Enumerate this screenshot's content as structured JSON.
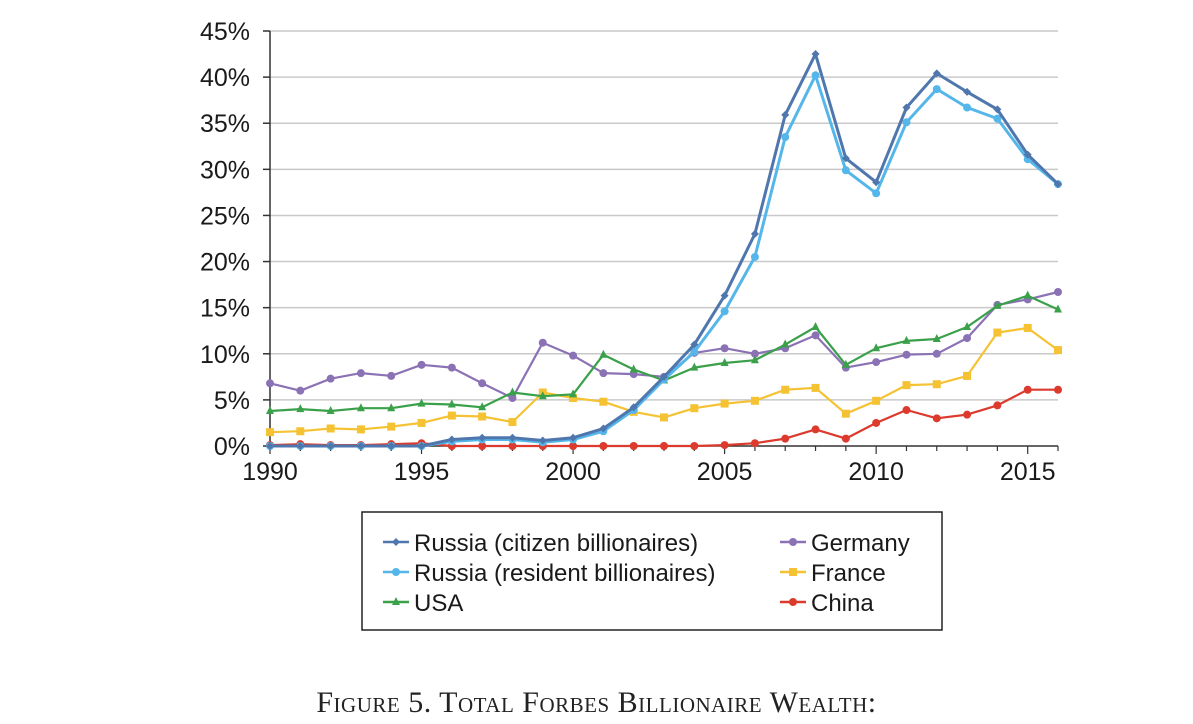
{
  "caption": "Figure 5. Total Forbes Billionaire Wealth:",
  "chart_data": {
    "type": "line",
    "title": "",
    "xlabel": "",
    "ylabel": "",
    "xlim": [
      1990,
      2016
    ],
    "ylim": [
      0,
      45
    ],
    "x_ticks": [
      1990,
      1995,
      2000,
      2005,
      2010,
      2015
    ],
    "y_ticks": [
      0,
      5,
      10,
      15,
      20,
      25,
      30,
      35,
      40,
      45
    ],
    "y_tick_labels": [
      "0%",
      "5%",
      "10%",
      "15%",
      "20%",
      "25%",
      "30%",
      "35%",
      "40%",
      "45%"
    ],
    "grid": "horizontal",
    "legend_position": "bottom",
    "series": [
      {
        "name": "Russia (citizen billionaires)",
        "color": "#4f77ae",
        "marker": "diamond",
        "x": [
          1990,
          1991,
          1992,
          1993,
          1994,
          1995,
          1996,
          1997,
          1998,
          1999,
          2000,
          2001,
          2002,
          2003,
          2004,
          2005,
          2006,
          2007,
          2008,
          2009,
          2010,
          2011,
          2012,
          2013,
          2014,
          2015,
          2016
        ],
        "y": [
          0,
          0,
          0,
          0,
          0,
          0,
          0.7,
          0.9,
          0.9,
          0.6,
          0.9,
          1.9,
          4.2,
          7.5,
          11,
          16.3,
          23,
          35.9,
          42.5,
          31.2,
          28.6,
          36.7,
          40.4,
          38.4,
          36.5,
          31.6,
          28.4
        ]
      },
      {
        "name": "Russia (resident billionaires)",
        "color": "#55b6e9",
        "marker": "circle",
        "x": [
          1990,
          1991,
          1992,
          1993,
          1994,
          1995,
          1996,
          1997,
          1998,
          1999,
          2000,
          2001,
          2002,
          2003,
          2004,
          2005,
          2006,
          2007,
          2008,
          2009,
          2010,
          2011,
          2012,
          2013,
          2014,
          2015,
          2016
        ],
        "y": [
          0,
          0,
          0,
          0,
          0,
          0,
          0.5,
          0.7,
          0.7,
          0.4,
          0.7,
          1.6,
          3.9,
          7.2,
          10.2,
          14.6,
          20.5,
          33.5,
          40.2,
          29.9,
          27.4,
          35.1,
          38.7,
          36.7,
          35.5,
          31.1,
          28.4
        ]
      },
      {
        "name": "USA",
        "color": "#3aa049",
        "marker": "triangle",
        "x": [
          1990,
          1991,
          1992,
          1993,
          1994,
          1995,
          1996,
          1997,
          1998,
          1999,
          2000,
          2001,
          2002,
          2003,
          2004,
          2005,
          2006,
          2007,
          2008,
          2009,
          2010,
          2011,
          2012,
          2013,
          2014,
          2015,
          2016
        ],
        "y": [
          3.8,
          4,
          3.8,
          4.1,
          4.1,
          4.6,
          4.5,
          4.2,
          5.8,
          5.4,
          5.6,
          9.9,
          8.3,
          7.1,
          8.5,
          9,
          9.3,
          11,
          12.9,
          8.8,
          10.6,
          11.4,
          11.6,
          12.9,
          15.2,
          16.3,
          14.8
        ]
      },
      {
        "name": "Germany",
        "color": "#8b72b5",
        "marker": "circle",
        "x": [
          1990,
          1991,
          1992,
          1993,
          1994,
          1995,
          1996,
          1997,
          1998,
          1999,
          2000,
          2001,
          2002,
          2003,
          2004,
          2005,
          2006,
          2007,
          2008,
          2009,
          2010,
          2011,
          2012,
          2013,
          2014,
          2015,
          2016
        ],
        "y": [
          6.8,
          6,
          7.3,
          7.9,
          7.6,
          8.8,
          8.5,
          6.8,
          5.2,
          11.2,
          9.8,
          7.9,
          7.8,
          7.5,
          10.1,
          10.6,
          10,
          10.6,
          12,
          8.5,
          9.1,
          9.9,
          10,
          11.7,
          15.3,
          15.9,
          16.7
        ]
      },
      {
        "name": "France",
        "color": "#f5c233",
        "marker": "square",
        "x": [
          1990,
          1991,
          1992,
          1993,
          1994,
          1995,
          1996,
          1997,
          1998,
          1999,
          2000,
          2001,
          2002,
          2003,
          2004,
          2005,
          2006,
          2007,
          2008,
          2009,
          2010,
          2011,
          2012,
          2013,
          2014,
          2015,
          2016
        ],
        "y": [
          1.5,
          1.6,
          1.9,
          1.8,
          2.1,
          2.5,
          3.3,
          3.2,
          2.6,
          5.8,
          5.2,
          4.8,
          3.7,
          3.1,
          4.1,
          4.6,
          4.9,
          6.1,
          6.3,
          3.5,
          4.9,
          6.6,
          6.7,
          7.6,
          12.3,
          12.8,
          10.4
        ]
      },
      {
        "name": "China",
        "color": "#dc3a2c",
        "marker": "circle",
        "x": [
          1990,
          1991,
          1992,
          1993,
          1994,
          1995,
          1996,
          1997,
          1998,
          1999,
          2000,
          2001,
          2002,
          2003,
          2004,
          2005,
          2006,
          2007,
          2008,
          2009,
          2010,
          2011,
          2012,
          2013,
          2014,
          2015,
          2016
        ],
        "y": [
          0.1,
          0.2,
          0.1,
          0.1,
          0.2,
          0.3,
          0,
          0,
          0,
          0,
          0,
          0,
          0,
          0,
          0,
          0.1,
          0.3,
          0.8,
          1.8,
          0.8,
          2.5,
          3.9,
          3,
          3.4,
          4.4,
          6.1,
          6.1
        ]
      }
    ]
  }
}
